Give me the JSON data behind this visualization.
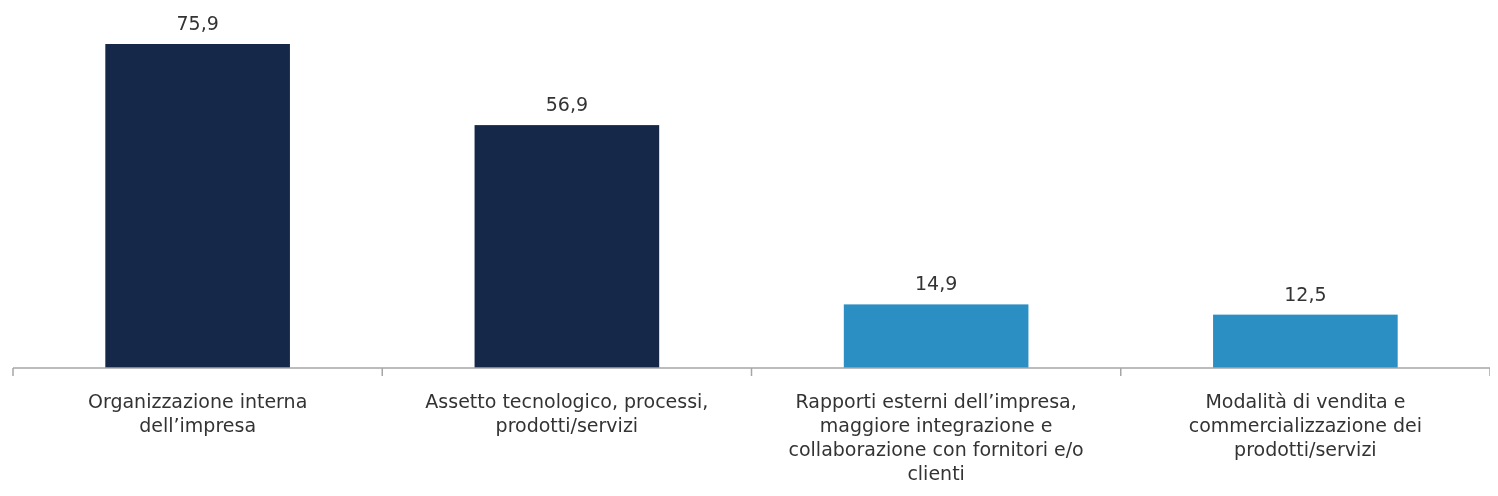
{
  "chart_data": {
    "type": "bar",
    "categories": [
      "Organizzazione interna dell’impresa",
      "Assetto tecnologico, processi, prodotti/servizi",
      "Rapporti esterni dell’impresa, maggiore integrazione e collaborazione con fornitori e/o clienti",
      "Modalità di vendita e commercializzazione dei prodotti/servizi"
    ],
    "values": [
      75.9,
      56.9,
      14.9,
      12.5
    ],
    "value_labels": [
      "75,9",
      "56,9",
      "14,9",
      "12,5"
    ],
    "colors": [
      "#16284a",
      "#16284a",
      "#2b8fc4",
      "#2b8fc4"
    ]
  }
}
